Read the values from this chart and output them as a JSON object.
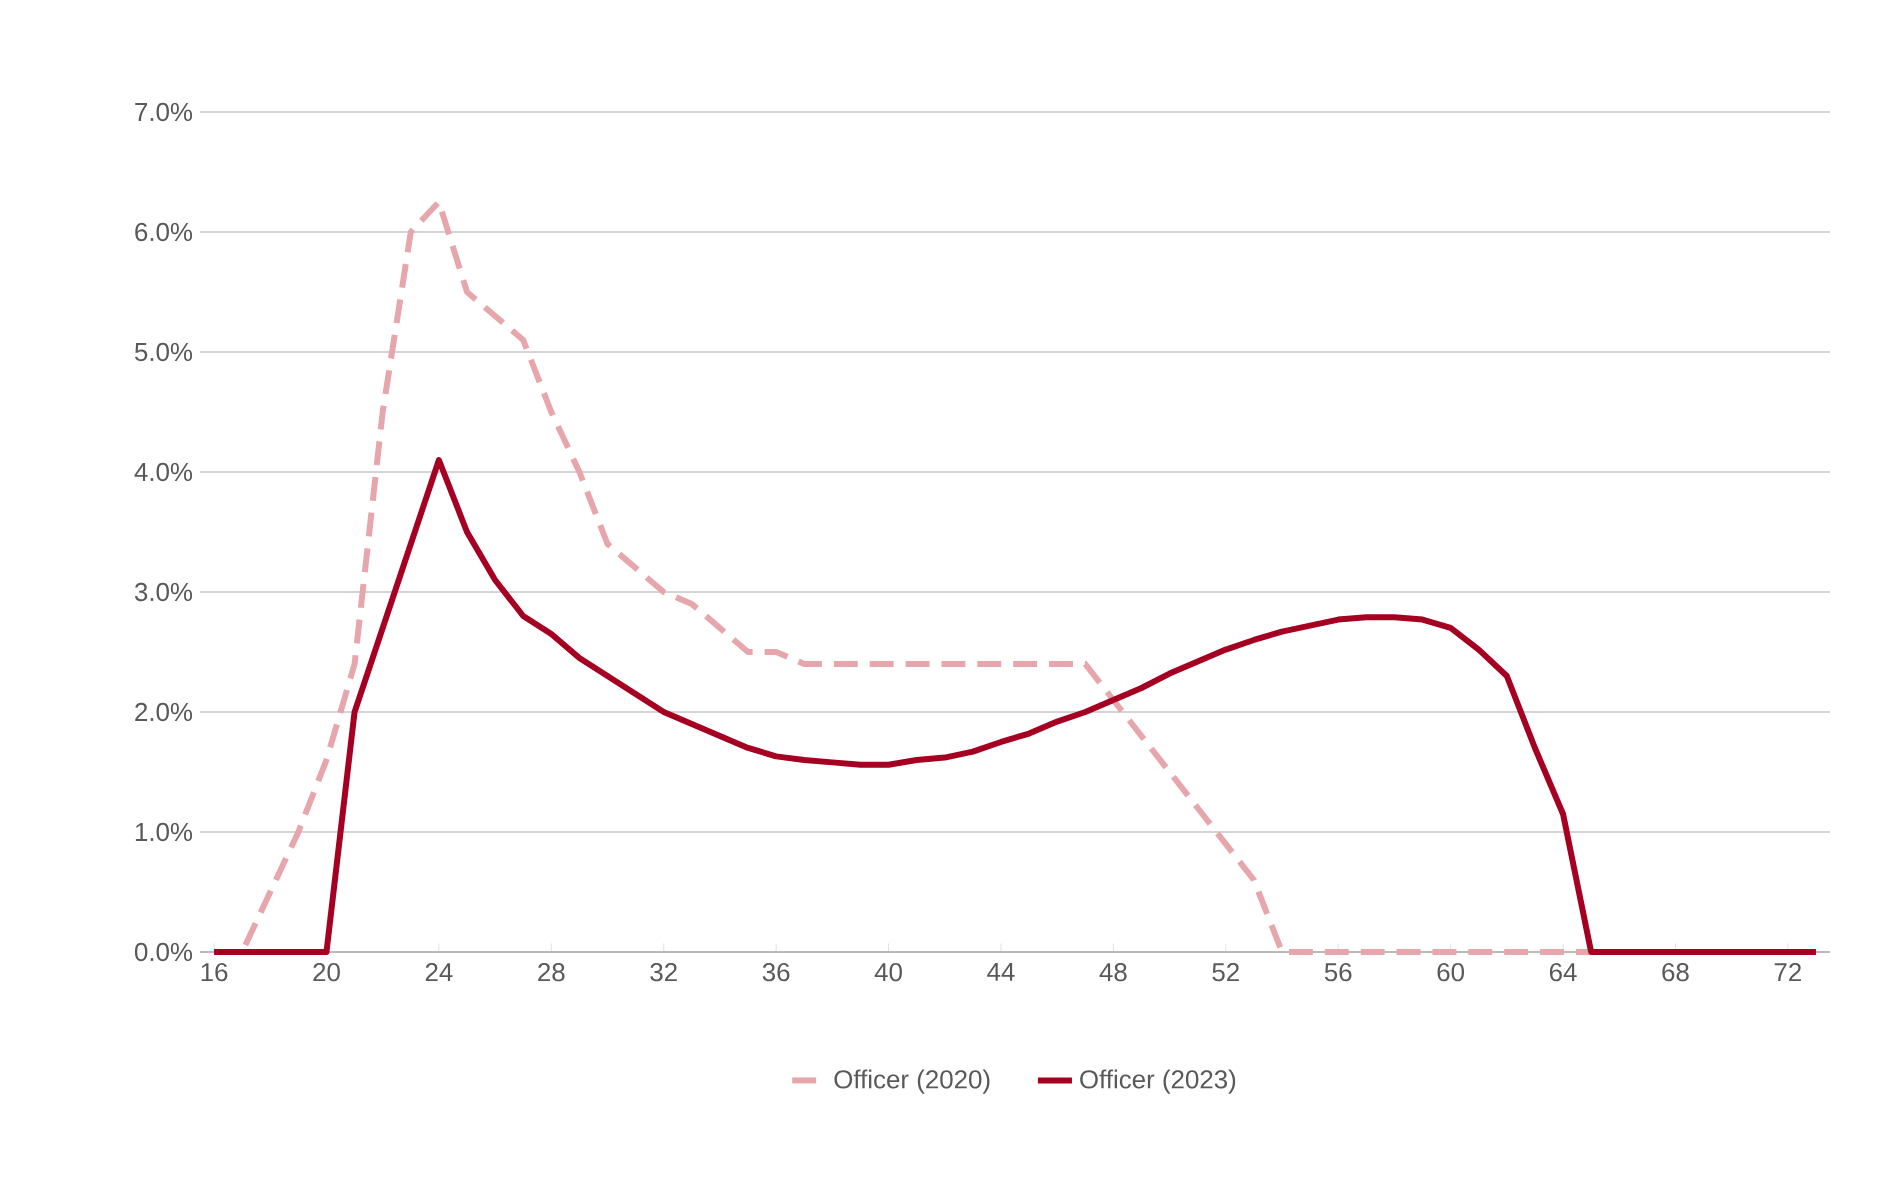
{
  "chart_data": {
    "type": "line",
    "x": [
      16,
      17,
      18,
      19,
      20,
      21,
      22,
      23,
      24,
      25,
      26,
      27,
      28,
      29,
      30,
      31,
      32,
      33,
      34,
      35,
      36,
      37,
      38,
      39,
      40,
      41,
      42,
      43,
      44,
      45,
      46,
      47,
      48,
      49,
      50,
      51,
      52,
      53,
      54,
      55,
      56,
      57,
      58,
      59,
      60,
      61,
      62,
      63,
      64,
      65,
      66,
      67,
      68,
      69,
      70,
      71,
      72,
      73
    ],
    "series": [
      {
        "name": "Officer (2020)",
        "color": "#e6a6ab",
        "line_style": "dashed",
        "values": [
          0,
          0,
          0.5,
          1.0,
          1.6,
          2.4,
          4.5,
          6.0,
          6.25,
          5.5,
          5.3,
          5.1,
          4.5,
          4.0,
          3.4,
          3.2,
          3.0,
          2.9,
          2.7,
          2.5,
          2.5,
          2.4,
          2.4,
          2.4,
          2.4,
          2.4,
          2.4,
          2.4,
          2.4,
          2.4,
          2.4,
          2.4,
          2.1,
          1.8,
          1.5,
          1.2,
          0.9,
          0.6,
          0,
          0,
          0,
          0,
          0,
          0,
          0,
          0,
          0,
          0,
          0,
          0,
          0,
          0,
          0,
          0,
          0,
          0,
          0,
          0
        ]
      },
      {
        "name": "Officer (2023)",
        "color": "#a50021",
        "line_style": "solid",
        "values": [
          0,
          0,
          0,
          0,
          0,
          2.0,
          2.7,
          3.4,
          4.1,
          3.5,
          3.1,
          2.8,
          2.65,
          2.45,
          2.3,
          2.15,
          2.0,
          1.9,
          1.8,
          1.7,
          1.63,
          1.6,
          1.58,
          1.56,
          1.56,
          1.6,
          1.62,
          1.67,
          1.75,
          1.82,
          1.92,
          2.0,
          2.1,
          2.2,
          2.32,
          2.42,
          2.52,
          2.6,
          2.67,
          2.72,
          2.77,
          2.79,
          2.79,
          2.77,
          2.7,
          2.52,
          2.3,
          1.7,
          1.15,
          0,
          0,
          0,
          0,
          0,
          0,
          0,
          0,
          0
        ]
      }
    ],
    "xlim": [
      15.5,
      73.5
    ],
    "xticks": [
      16,
      20,
      24,
      28,
      32,
      36,
      40,
      44,
      48,
      52,
      56,
      60,
      64,
      68,
      72
    ],
    "ylim": [
      0,
      7
    ],
    "yticks": [
      {
        "value": 0,
        "label": "0.0%"
      },
      {
        "value": 1,
        "label": "1.0%"
      },
      {
        "value": 2,
        "label": "2.0%"
      },
      {
        "value": 3,
        "label": "3.0%"
      },
      {
        "value": 4,
        "label": "4.0%"
      },
      {
        "value": 5,
        "label": "5.0%"
      },
      {
        "value": 6,
        "label": "6.0%"
      },
      {
        "value": 7,
        "label": "7.0%"
      }
    ],
    "grid": "y",
    "legend": "bottom",
    "marker": "none"
  }
}
